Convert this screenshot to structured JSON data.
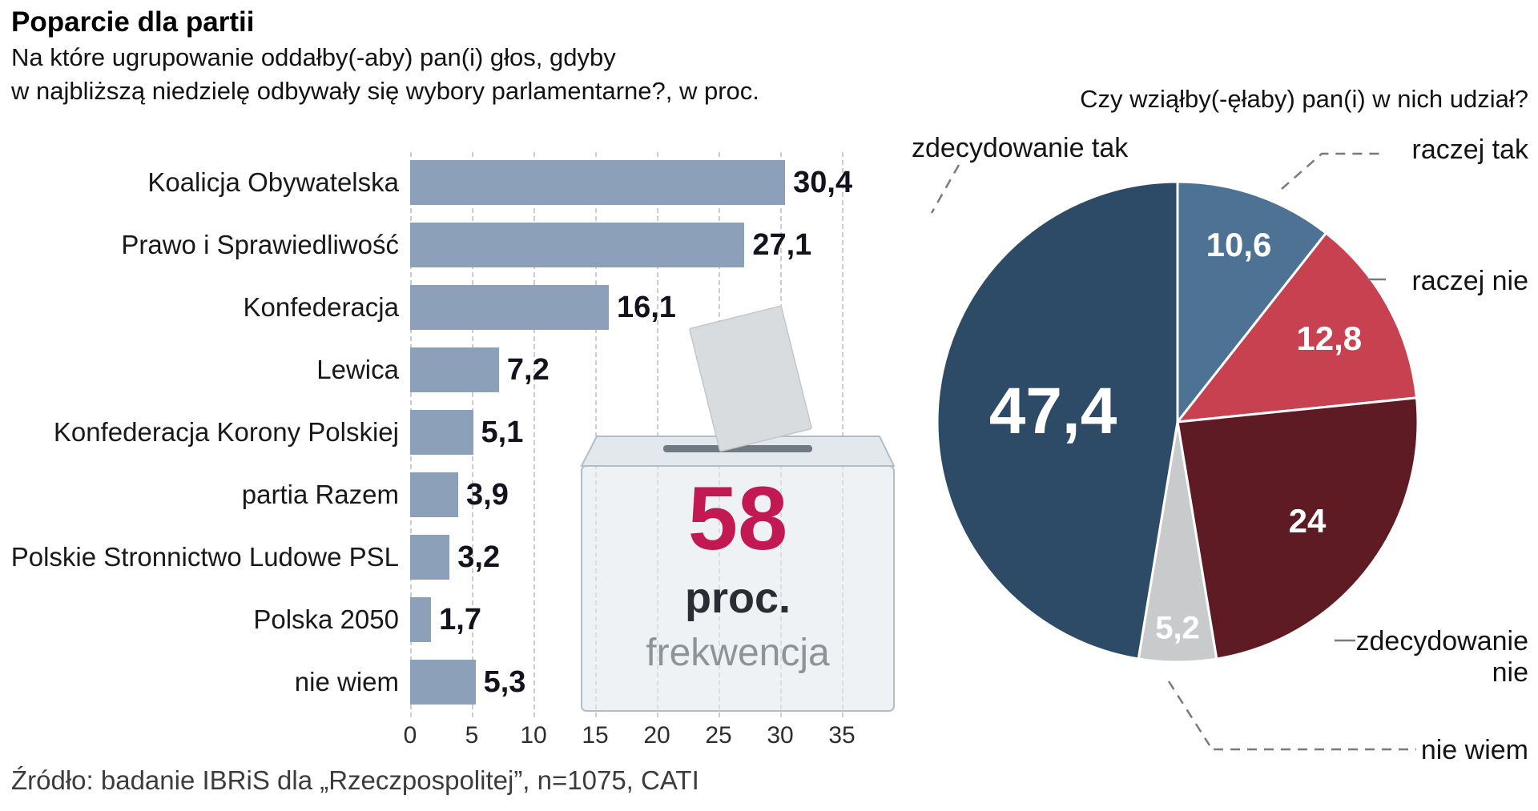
{
  "header": {
    "title": "Poparcie dla partii",
    "subtitle_line1": "Na które ugrupowanie oddałby(-aby) pan(i) głos, gdyby",
    "subtitle_line2": "w najbliższą niedzielę odbywały się wybory parlamentarne?, w proc."
  },
  "pie_question": "Czy wziąłby(-ęłaby) pan(i) w nich udział?",
  "ballot_box": {
    "value": "58",
    "unit": "proc.",
    "caption": "frekwencja"
  },
  "callouts": {
    "zdecydowanie_tak": "zdecydowanie tak",
    "raczej_tak": "raczej tak",
    "raczej_nie": "raczej nie",
    "zdecydowanie_nie_line1": "zdecydowanie",
    "zdecydowanie_nie_line2": "nie",
    "nie_wiem": "nie wiem"
  },
  "source": "Źródło: badanie IBRiS dla „Rzeczpospolitej”, n=1075, CATI",
  "chart_data": [
    {
      "type": "bar",
      "orientation": "horizontal",
      "title": "Poparcie dla partii",
      "subtitle": "Na które ugrupowanie oddałby(-aby) pan(i) głos, gdyby w najbliższą niedzielę odbywały się wybory parlamentarne?, w proc.",
      "categories": [
        "Koalicja Obywatelska",
        "Prawo i Sprawiedliwość",
        "Konfederacja",
        "Lewica",
        "Konfederacja Korony Polskiej",
        "partia Razem",
        "Polskie Stronnictwo Ludowe PSL",
        "Polska 2050",
        "nie wiem"
      ],
      "values": [
        30.4,
        27.1,
        16.1,
        7.2,
        5.1,
        3.9,
        3.2,
        1.7,
        5.3
      ],
      "value_labels": [
        "30,4",
        "27,1",
        "16,1",
        "7,2",
        "5,1",
        "3,9",
        "3,2",
        "1,7",
        "5,3"
      ],
      "xlim": [
        0,
        35
      ],
      "xticks": [
        0,
        5,
        10,
        15,
        20,
        25,
        30,
        35
      ],
      "grid": "dashed-vertical",
      "bar_color": "#8ca1b9"
    },
    {
      "type": "pie",
      "title": "Czy wziąłby(-ęłaby) pan(i) w nich udział?",
      "labels": [
        "raczej tak",
        "raczej nie",
        "zdecydowanie nie",
        "nie wiem",
        "zdecydowanie tak"
      ],
      "values": [
        10.6,
        12.8,
        24,
        5.2,
        47.4
      ],
      "value_labels": [
        "10,6",
        "12,8",
        "24",
        "5,2",
        "47,4"
      ],
      "colors": [
        "#4d7294",
        "#c84150",
        "#5f1b24",
        "#c8cacc",
        "#2d4b66"
      ],
      "start_angle_deg": 0,
      "direction": "clockwise",
      "label_r": [
        0.78,
        0.72,
        0.68,
        0.86,
        0.52
      ],
      "label_sizes": [
        42,
        42,
        42,
        40,
        82
      ]
    }
  ]
}
